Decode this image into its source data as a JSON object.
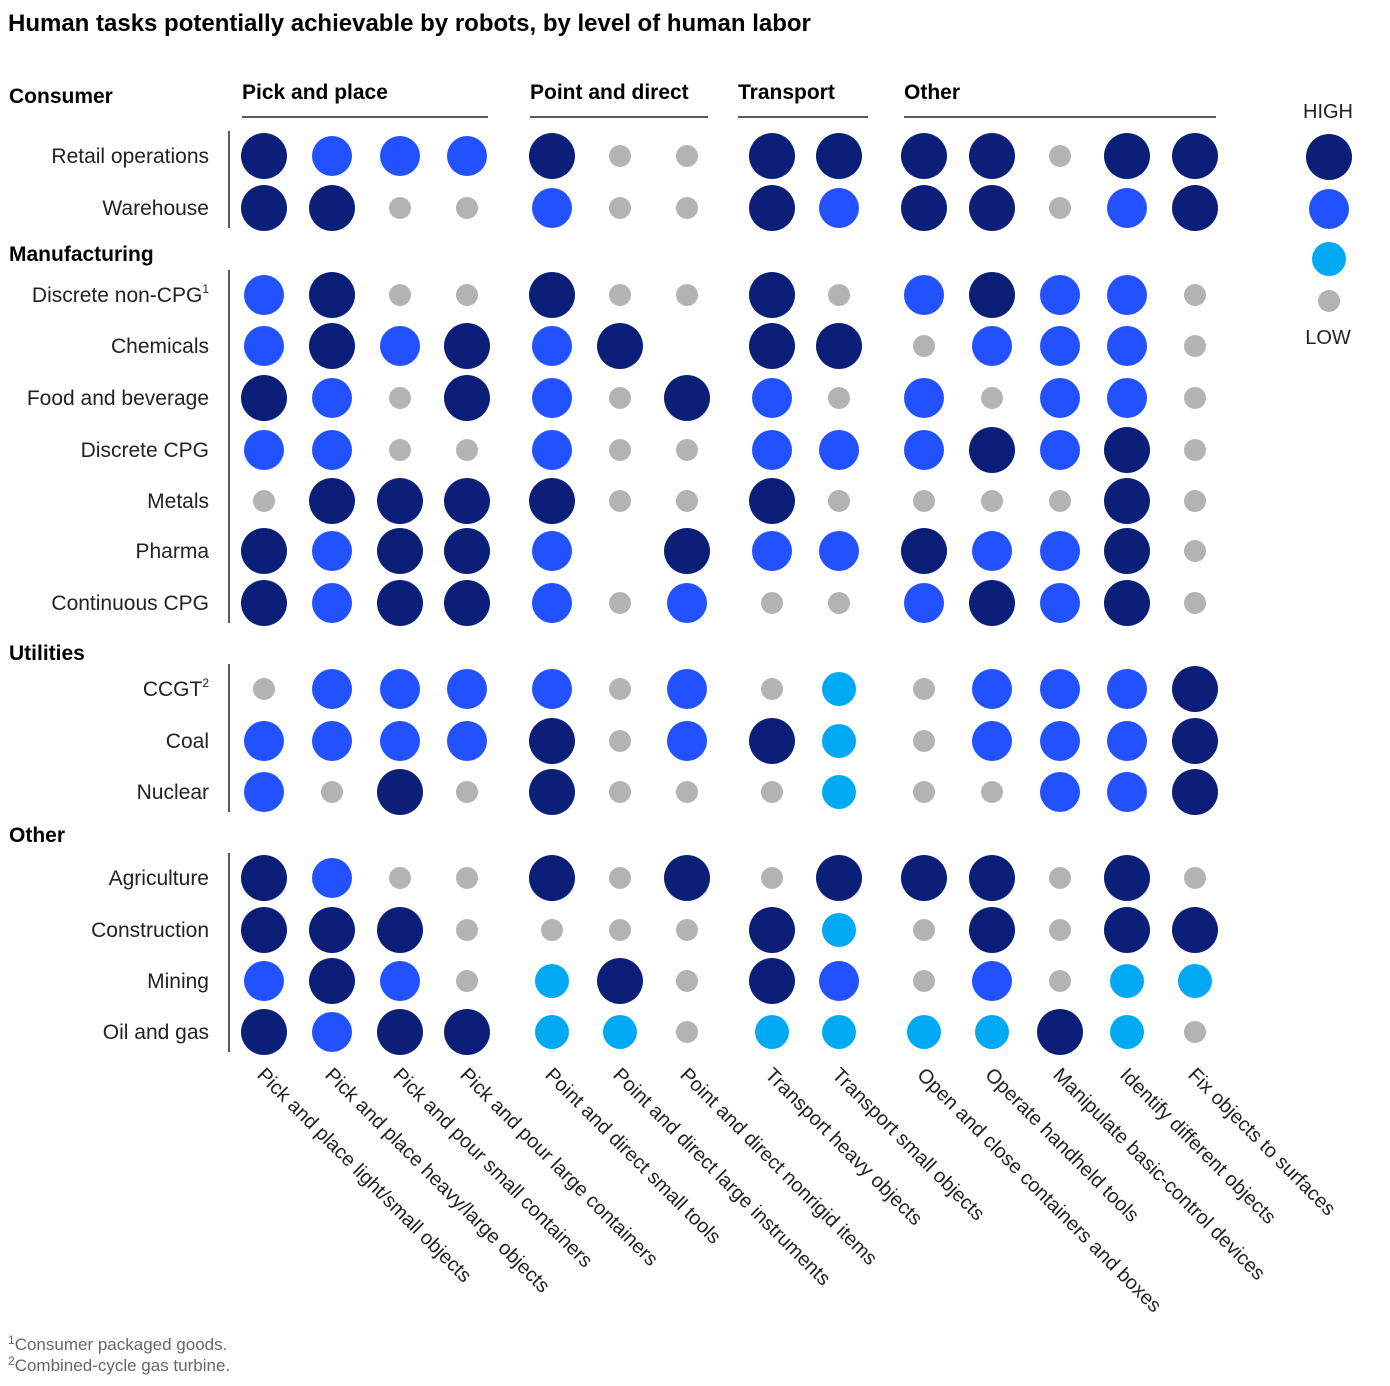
{
  "chart_data": {
    "type": "table",
    "title": "Human tasks potentially achievable by robots, by level of human labor",
    "task_groups": [
      {
        "name": "Pick and place",
        "tasks": 4
      },
      {
        "name": "Point and direct",
        "tasks": 3
      },
      {
        "name": "Transport",
        "tasks": 2
      },
      {
        "name": "Other",
        "tasks": 5
      }
    ],
    "tasks": [
      "Pick and place light/small objects",
      "Pick and place heavy/large objects",
      "Pick and pour small containers",
      "Pick and pour large containers",
      "Point and direct small tools",
      "Point and direct large instruments",
      "Point and direct nonrigid items",
      "Transport heavy objects",
      "Transport small objects",
      "Open and close containers and boxes",
      "Operate handheld tools",
      "Manipulate basic-control devices",
      "Identify different objects",
      "Fix objects to surfaces"
    ],
    "scale": {
      "high_label": "HIGH",
      "low_label": "LOW",
      "levels": [
        {
          "level": 4,
          "color": "#0b1f78"
        },
        {
          "level": 3,
          "color": "#2251ff"
        },
        {
          "level": 2,
          "color": "#00a9f4"
        },
        {
          "level": 1,
          "color": "#b3b3b3"
        }
      ]
    },
    "sectors": [
      {
        "name": "Consumer",
        "rows": [
          {
            "label": "Retail operations",
            "sup": "",
            "values": [
              4,
              3,
              3,
              3,
              4,
              1,
              1,
              4,
              4,
              4,
              4,
              1,
              4,
              4
            ]
          },
          {
            "label": "Warehouse",
            "sup": "",
            "values": [
              4,
              4,
              1,
              1,
              3,
              1,
              1,
              4,
              3,
              4,
              4,
              1,
              3,
              4
            ]
          }
        ]
      },
      {
        "name": "Manufacturing",
        "rows": [
          {
            "label": "Discrete non-CPG",
            "sup": "1",
            "values": [
              3,
              4,
              1,
              1,
              4,
              1,
              1,
              4,
              1,
              3,
              4,
              3,
              3,
              1
            ]
          },
          {
            "label": "Chemicals",
            "sup": "",
            "values": [
              3,
              4,
              3,
              4,
              3,
              4,
              null,
              4,
              4,
              1,
              3,
              3,
              3,
              1
            ]
          },
          {
            "label": "Food and beverage",
            "sup": "",
            "values": [
              4,
              3,
              1,
              4,
              3,
              1,
              4,
              3,
              1,
              3,
              1,
              3,
              3,
              1
            ]
          },
          {
            "label": "Discrete CPG",
            "sup": "",
            "values": [
              3,
              3,
              1,
              1,
              3,
              1,
              1,
              3,
              3,
              3,
              4,
              3,
              4,
              1
            ]
          },
          {
            "label": "Metals",
            "sup": "",
            "values": [
              1,
              4,
              4,
              4,
              4,
              1,
              1,
              4,
              1,
              1,
              1,
              1,
              4,
              1
            ]
          },
          {
            "label": "Pharma",
            "sup": "",
            "values": [
              4,
              3,
              4,
              4,
              3,
              null,
              4,
              3,
              3,
              4,
              3,
              3,
              4,
              1
            ]
          },
          {
            "label": "Continuous CPG",
            "sup": "",
            "values": [
              4,
              3,
              4,
              4,
              3,
              1,
              3,
              1,
              1,
              3,
              4,
              3,
              4,
              1
            ]
          }
        ]
      },
      {
        "name": "Utilities",
        "rows": [
          {
            "label": "CCGT",
            "sup": "2",
            "values": [
              1,
              3,
              3,
              3,
              3,
              1,
              3,
              1,
              2,
              1,
              3,
              3,
              3,
              4
            ]
          },
          {
            "label": "Coal",
            "sup": "",
            "values": [
              3,
              3,
              3,
              3,
              4,
              1,
              3,
              4,
              2,
              1,
              3,
              3,
              3,
              4
            ]
          },
          {
            "label": "Nuclear",
            "sup": "",
            "values": [
              3,
              1,
              4,
              1,
              4,
              1,
              1,
              1,
              2,
              1,
              1,
              3,
              3,
              4
            ]
          }
        ]
      },
      {
        "name": "Other",
        "rows": [
          {
            "label": "Agriculture",
            "sup": "",
            "values": [
              4,
              3,
              1,
              1,
              4,
              1,
              4,
              1,
              4,
              4,
              4,
              1,
              4,
              1
            ]
          },
          {
            "label": "Construction",
            "sup": "",
            "values": [
              4,
              4,
              4,
              1,
              1,
              1,
              1,
              4,
              2,
              1,
              4,
              1,
              4,
              4
            ]
          },
          {
            "label": "Mining",
            "sup": "",
            "values": [
              3,
              4,
              3,
              1,
              2,
              4,
              1,
              4,
              3,
              1,
              3,
              1,
              2,
              2
            ]
          },
          {
            "label": "Oil and gas",
            "sup": "",
            "values": [
              4,
              3,
              4,
              4,
              2,
              2,
              1,
              2,
              2,
              2,
              2,
              4,
              2,
              1
            ]
          }
        ]
      }
    ],
    "footnotes": [
      {
        "sup": "1",
        "text": "Consumer packaged goods."
      },
      {
        "sup": "2",
        "text": "Combined-cycle gas turbine."
      }
    ]
  }
}
